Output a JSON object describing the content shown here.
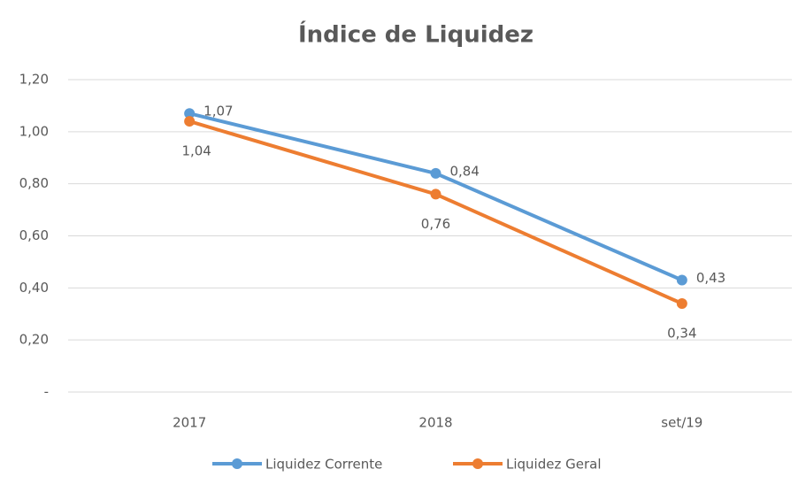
{
  "chart_data": {
    "type": "line",
    "title": "Índice de Liquidez",
    "categories": [
      "2017",
      "2018",
      "set/19"
    ],
    "series": [
      {
        "name": "Liquidez Corrente",
        "color": "#5b9bd5",
        "values": [
          1.07,
          0.84,
          0.43
        ],
        "value_labels": [
          "1,07",
          "0,84",
          "0,43"
        ]
      },
      {
        "name": "Liquidez Geral",
        "color": "#ed7d31",
        "values": [
          1.04,
          0.76,
          0.34
        ],
        "value_labels": [
          "1,04",
          "0,76",
          "0,34"
        ]
      }
    ],
    "ylim": [
      0,
      1.2
    ],
    "yticks": [
      {
        "value": 0,
        "label": "-"
      },
      {
        "value": 0.2,
        "label": "0,20"
      },
      {
        "value": 0.4,
        "label": "0,40"
      },
      {
        "value": 0.6,
        "label": "0,60"
      },
      {
        "value": 0.8,
        "label": "0,80"
      },
      {
        "value": 1.0,
        "label": "1,00"
      },
      {
        "value": 1.2,
        "label": "1,20"
      }
    ],
    "grid": true,
    "legend": "bottom"
  }
}
